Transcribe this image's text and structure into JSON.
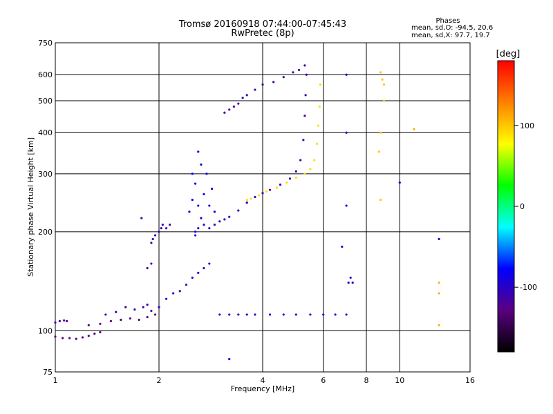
{
  "chart_data": {
    "type": "scatter",
    "title": "Tromsø 20160918 07:44:00-07:45:43",
    "subtitle": "RwPretec (8p)",
    "xlabel": "Frequency [MHz]",
    "ylabel": "Stationary phase Virtual Height [km]",
    "x_scale": "log",
    "y_scale": "log",
    "xlim": [
      1,
      16
    ],
    "ylim": [
      75,
      750
    ],
    "x_ticks": [
      1,
      2,
      4,
      6,
      8,
      10,
      16
    ],
    "y_ticks": [
      75,
      100,
      200,
      300,
      400,
      500,
      600,
      750
    ],
    "grid": true,
    "phase_stats": {
      "heading": "Phases",
      "line_o": "mean, sd,O:  -94.5, 20.6",
      "line_x": "mean, sd,X:  97.7, 19.7"
    },
    "colorbar": {
      "label": "[deg]",
      "range": [
        -180,
        180
      ],
      "ticks": [
        100,
        0,
        -100
      ],
      "colors": [
        "#000000",
        "#5a007f",
        "#0000ff",
        "#00ffff",
        "#00ff00",
        "#ffff00",
        "#ff8000",
        "#ff0000"
      ]
    },
    "series": [
      {
        "phase": -120,
        "points": [
          [
            1.0,
            106
          ],
          [
            1.03,
            107
          ],
          [
            1.06,
            107.5
          ],
          [
            1.08,
            107
          ]
        ]
      },
      {
        "phase": -125,
        "points": [
          [
            1.0,
            96
          ],
          [
            1.05,
            95
          ],
          [
            1.1,
            95
          ],
          [
            1.15,
            94.5
          ],
          [
            1.2,
            95.5
          ],
          [
            1.25,
            96.5
          ],
          [
            1.3,
            98
          ],
          [
            1.35,
            99
          ]
        ]
      },
      {
        "phase": -130,
        "points": [
          [
            1.25,
            104
          ],
          [
            1.35,
            105
          ],
          [
            1.45,
            107
          ],
          [
            1.55,
            108
          ],
          [
            1.65,
            109
          ],
          [
            1.75,
            108
          ],
          [
            1.85,
            110
          ],
          [
            1.95,
            112
          ]
        ]
      },
      {
        "phase": -110,
        "points": [
          [
            1.4,
            112
          ],
          [
            1.5,
            114
          ],
          [
            1.6,
            118
          ],
          [
            1.7,
            116
          ],
          [
            1.8,
            118
          ],
          [
            1.85,
            120
          ],
          [
            1.9,
            115
          ]
        ]
      },
      {
        "phase": -110,
        "points": [
          [
            1.9,
            185
          ],
          [
            1.92,
            190
          ],
          [
            1.95,
            195
          ],
          [
            2.0,
            200
          ],
          [
            2.03,
            205
          ],
          [
            2.05,
            210
          ],
          [
            2.1,
            205
          ],
          [
            2.15,
            210
          ]
        ]
      },
      {
        "phase": -115,
        "points": [
          [
            1.78,
            220
          ],
          [
            1.85,
            155
          ],
          [
            1.9,
            160
          ]
        ]
      },
      {
        "phase": -100,
        "points": [
          [
            2.0,
            118
          ],
          [
            2.1,
            125
          ],
          [
            2.2,
            130
          ],
          [
            2.3,
            132
          ],
          [
            2.4,
            138
          ],
          [
            2.5,
            145
          ],
          [
            2.6,
            150
          ],
          [
            2.7,
            155
          ],
          [
            2.8,
            160
          ]
        ]
      },
      {
        "phase": -80,
        "points": [
          [
            2.45,
            230
          ],
          [
            2.5,
            250
          ],
          [
            2.5,
            300
          ],
          [
            2.55,
            280
          ],
          [
            2.6,
            240
          ],
          [
            2.6,
            350
          ],
          [
            2.65,
            220
          ],
          [
            2.7,
            260
          ],
          [
            2.75,
            300
          ],
          [
            2.8,
            240
          ],
          [
            2.85,
            270
          ],
          [
            2.9,
            230
          ],
          [
            2.55,
            200
          ],
          [
            2.65,
            320
          ]
        ]
      },
      {
        "phase": -105,
        "points": [
          [
            2.55,
            195
          ],
          [
            2.6,
            205
          ],
          [
            2.7,
            210
          ],
          [
            2.8,
            205
          ],
          [
            2.9,
            210
          ],
          [
            3.0,
            215
          ],
          [
            3.1,
            218
          ],
          [
            3.2,
            222
          ],
          [
            3.4,
            232
          ],
          [
            3.6,
            245
          ]
        ]
      },
      {
        "phase": -115,
        "points": [
          [
            3.1,
            460
          ],
          [
            3.2,
            470
          ],
          [
            3.3,
            480
          ],
          [
            3.4,
            490
          ],
          [
            3.5,
            510
          ],
          [
            3.6,
            520
          ],
          [
            3.8,
            540
          ],
          [
            4.0,
            560
          ],
          [
            4.3,
            570
          ],
          [
            4.6,
            590
          ],
          [
            4.9,
            610
          ],
          [
            5.1,
            620
          ],
          [
            5.3,
            640
          ]
        ]
      },
      {
        "phase": -110,
        "points": [
          [
            3.6,
            245
          ],
          [
            3.8,
            255
          ],
          [
            4.0,
            262
          ],
          [
            4.2,
            268
          ],
          [
            4.5,
            278
          ],
          [
            4.8,
            290
          ],
          [
            5.0,
            305
          ],
          [
            5.15,
            330
          ],
          [
            5.25,
            380
          ],
          [
            5.3,
            450
          ],
          [
            5.33,
            520
          ],
          [
            5.36,
            600
          ]
        ]
      },
      {
        "phase": 90,
        "points": [
          [
            3.6,
            250
          ],
          [
            3.7,
            252
          ],
          [
            3.9,
            258
          ],
          [
            4.1,
            265
          ],
          [
            4.4,
            272
          ],
          [
            4.7,
            282
          ],
          [
            5.0,
            292
          ],
          [
            5.3,
            300
          ],
          [
            5.5,
            310
          ],
          [
            5.65,
            330
          ],
          [
            5.75,
            370
          ],
          [
            5.8,
            420
          ],
          [
            5.85,
            480
          ],
          [
            5.88,
            560
          ]
        ]
      },
      {
        "phase": -100,
        "points": [
          [
            3.0,
            112
          ],
          [
            3.2,
            112
          ],
          [
            3.4,
            112
          ],
          [
            3.6,
            112
          ],
          [
            3.8,
            112
          ],
          [
            4.2,
            112
          ],
          [
            4.6,
            112
          ],
          [
            5.0,
            112
          ],
          [
            5.5,
            112
          ],
          [
            6.0,
            112
          ],
          [
            6.5,
            112
          ],
          [
            7.0,
            112
          ]
        ]
      },
      {
        "phase": -95,
        "points": [
          [
            7.0,
            600
          ],
          [
            7.0,
            400
          ],
          [
            7.0,
            240
          ],
          [
            7.1,
            140
          ],
          [
            7.2,
            145
          ],
          [
            7.3,
            140
          ],
          [
            6.8,
            180
          ]
        ]
      },
      {
        "phase": 100,
        "points": [
          [
            8.8,
            610
          ],
          [
            8.9,
            580
          ],
          [
            9.0,
            560
          ],
          [
            8.8,
            400
          ],
          [
            8.7,
            350
          ],
          [
            8.8,
            250
          ],
          [
            9.0,
            500
          ]
        ]
      },
      {
        "phase": 110,
        "points": [
          [
            11.0,
            410
          ],
          [
            13.0,
            140
          ],
          [
            13.0,
            130
          ],
          [
            13.0,
            104
          ]
        ]
      },
      {
        "phase": -90,
        "points": [
          [
            13.0,
            190
          ],
          [
            10.0,
            282
          ],
          [
            3.2,
            82
          ]
        ]
      }
    ]
  }
}
